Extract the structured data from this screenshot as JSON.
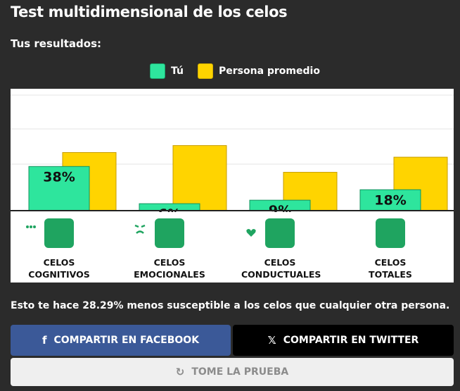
{
  "header": {
    "title": "Test multidimensional de los celos",
    "subtitle": "Tus resultados:"
  },
  "legend": [
    {
      "label": "Tú",
      "color": "#2ee59d"
    },
    {
      "label": "Persona promedio",
      "color": "#ffd400"
    }
  ],
  "chart_data": {
    "type": "bar",
    "categories": [
      "CELOS\nCOGNITIVOS",
      "CELOS\nEMOCIONALES",
      "CELOS\nCONDUCTUALES",
      "CELOS\nTOTALES"
    ],
    "series": [
      {
        "name": "Tú",
        "values": [
          38,
          6,
          9,
          18
        ],
        "labels": [
          "38%",
          "6%",
          "9%",
          "18%"
        ],
        "color": "#2ee59d"
      },
      {
        "name": "Persona promedio",
        "values": [
          50,
          56,
          33,
          46
        ],
        "color": "#ffd400"
      }
    ],
    "ylim": [
      0,
      100
    ],
    "grid": true
  },
  "categories": [
    {
      "label": "CELOS\nCOGNITIVOS",
      "icon": "thought-bubble-icon"
    },
    {
      "label": "CELOS\nEMOCIONALES",
      "icon": "theater-mask-icon"
    },
    {
      "label": "CELOS\nCONDUCTUALES",
      "icon": "flaming-heart-icon"
    },
    {
      "label": "CELOS\nTOTALES",
      "icon": "constellation-icon"
    }
  ],
  "result_text": "Esto te hace 28.29% menos susceptible a los celos que cualquier otra persona.",
  "buttons": {
    "facebook": "COMPARTIR EN FACEBOOK",
    "twitter": "COMPARTIR EN TWITTER",
    "retry": "TOME LA PRUEBA"
  }
}
